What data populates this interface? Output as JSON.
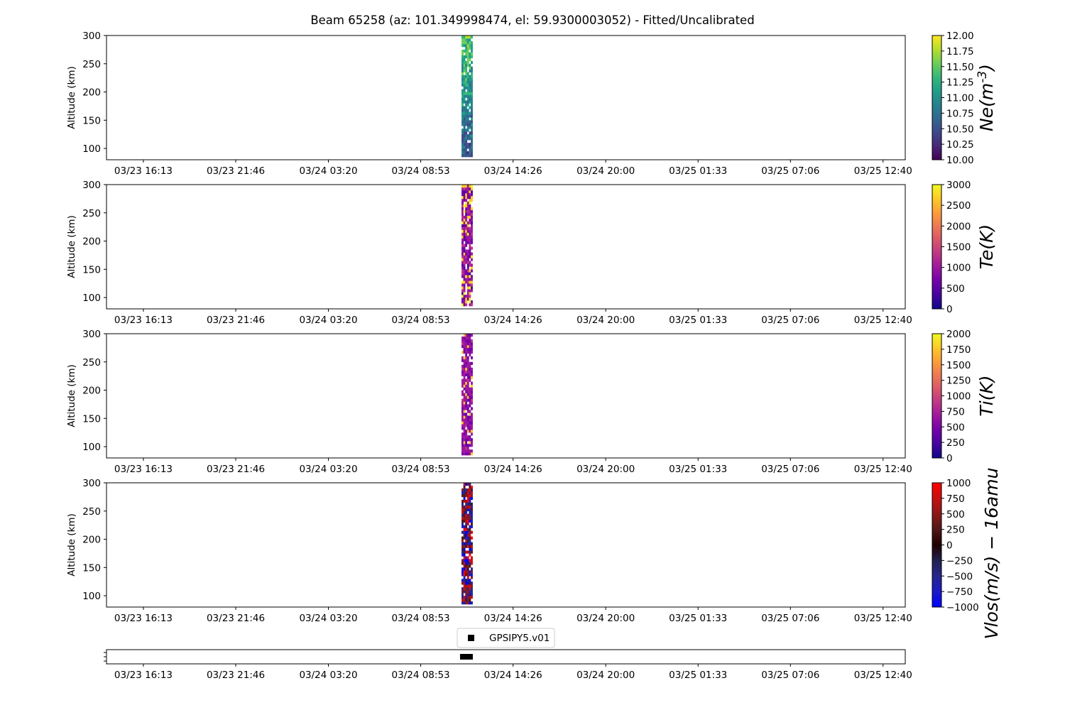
{
  "title": "Beam 65258 (az: 101.349998474, el: 59.9300003052) - Fitted/Uncalibrated",
  "x_tick_labels": [
    "03/23 16:13",
    "03/23 21:46",
    "03/24 03:20",
    "03/24 08:53",
    "03/24 14:26",
    "03/24 20:00",
    "03/25 01:33",
    "03/25 07:06",
    "03/25 12:40"
  ],
  "chart_data": [
    {
      "type": "heatmap",
      "parameter": "Ne",
      "ylabel": "Altitude (km)",
      "ylim": [
        80,
        300
      ],
      "y_ticks": [
        100,
        150,
        200,
        250,
        300
      ],
      "xlim": [
        "03/23 14:00",
        "03/25 14:00"
      ],
      "data_time_range": [
        "03/24 11:20",
        "03/24 12:00"
      ],
      "colorbar": {
        "label": "Ne(m^{-3})",
        "colormap": "viridis",
        "range": [
          10.0,
          12.0
        ],
        "ticks": [
          "10.00",
          "10.25",
          "10.50",
          "10.75",
          "11.00",
          "11.25",
          "11.50",
          "11.75",
          "12.00"
        ]
      }
    },
    {
      "type": "heatmap",
      "parameter": "Te",
      "ylabel": "Altitude (km)",
      "ylim": [
        80,
        300
      ],
      "y_ticks": [
        100,
        150,
        200,
        250,
        300
      ],
      "xlim": [
        "03/23 14:00",
        "03/25 14:00"
      ],
      "data_time_range": [
        "03/24 11:20",
        "03/24 12:00"
      ],
      "colorbar": {
        "label": "Te(K)",
        "colormap": "plasma",
        "range": [
          0,
          3000
        ],
        "ticks": [
          "0",
          "500",
          "1000",
          "1500",
          "2000",
          "2500",
          "3000"
        ]
      }
    },
    {
      "type": "heatmap",
      "parameter": "Ti",
      "ylabel": "Altitude (km)",
      "ylim": [
        80,
        300
      ],
      "y_ticks": [
        100,
        150,
        200,
        250,
        300
      ],
      "xlim": [
        "03/23 14:00",
        "03/25 14:00"
      ],
      "data_time_range": [
        "03/24 11:20",
        "03/24 12:00"
      ],
      "colorbar": {
        "label": "Ti(K)",
        "colormap": "plasma",
        "range": [
          0,
          2000
        ],
        "ticks": [
          "0",
          "250",
          "500",
          "750",
          "1000",
          "1250",
          "1500",
          "1750",
          "2000"
        ]
      }
    },
    {
      "type": "heatmap",
      "parameter": "Vlos",
      "ylabel": "Altitude (km)",
      "ylim": [
        80,
        300
      ],
      "y_ticks": [
        100,
        150,
        200,
        250,
        300
      ],
      "xlim": [
        "03/23 14:00",
        "03/25 14:00"
      ],
      "data_time_range": [
        "03/24 11:20",
        "03/24 12:00"
      ],
      "colorbar": {
        "label": "Vlos(m/s) − 16amu",
        "colormap": "bwr",
        "range": [
          -1000,
          1000
        ],
        "ticks": [
          "−1000",
          "−750",
          "−500",
          "−250",
          "0",
          "250",
          "500",
          "750",
          "1000"
        ]
      }
    },
    {
      "type": "scatter",
      "parameter": "mode",
      "xlim": [
        "03/23 14:00",
        "03/25 14:00"
      ],
      "series": [
        {
          "name": "GPSIPY5.v01",
          "marker": "square",
          "color": "#000000",
          "x_range": [
            "03/24 11:25",
            "03/24 11:55"
          ]
        }
      ],
      "legend": "top-center"
    }
  ]
}
